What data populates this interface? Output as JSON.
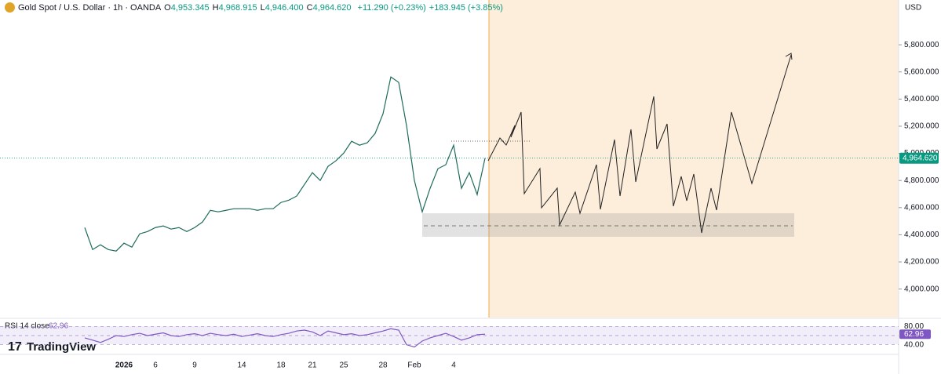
{
  "header": {
    "title": "Gold Spot / U.S. Dollar · 1h · OANDA",
    "ohlc": [
      {
        "key": "O",
        "value": "4,953.345"
      },
      {
        "key": "H",
        "value": "4,968.915"
      },
      {
        "key": "L",
        "value": "4,946.400"
      },
      {
        "key": "C",
        "value": "4,964.620"
      }
    ],
    "change": "+11.290 (+0.23%)",
    "change_extended": "+183.945 (+3.85%)",
    "currency": "USD",
    "brand": "TradingView"
  },
  "chart_data": [
    {
      "type": "line",
      "color": "#1f6b5c",
      "categories": [
        null,
        null,
        null,
        null,
        null,
        "2026",
        null,
        null,
        null,
        "6",
        null,
        null,
        null,
        null,
        "9",
        null,
        null,
        null,
        null,
        null,
        "14",
        null,
        null,
        null,
        null,
        "18",
        null,
        null,
        null,
        "21",
        null,
        null,
        null,
        "25",
        null,
        null,
        null,
        null,
        "28",
        null,
        null,
        null,
        "Feb",
        null,
        null,
        null,
        null,
        "4",
        null,
        null,
        null,
        null
      ],
      "series": [
        {
          "name": "Gold Spot",
          "color": "#1f6b5c",
          "values": [
            4453,
            4291,
            4326,
            4291,
            4280,
            4338,
            4309,
            4407,
            4424,
            4453,
            4465,
            4442,
            4453,
            4424,
            4453,
            4494,
            4580,
            4569,
            4580,
            4592,
            4592,
            4592,
            4580,
            4592,
            4592,
            4638,
            4655,
            4685,
            4771,
            4858,
            4800,
            4904,
            4945,
            5002,
            5089,
            5060,
            5078,
            5147,
            5291,
            5563,
            5523,
            5205,
            4800,
            4569,
            4742,
            4887,
            4916,
            5060,
            4742,
            4858,
            4696,
            4964.62
          ]
        }
      ],
      "ylim": [
        3790,
        6130
      ],
      "yticks": [
        {
          "value": 4000,
          "label": "4,000.000"
        },
        {
          "value": 4200,
          "label": "4,200.000"
        },
        {
          "value": 4400,
          "label": "4,400.000"
        },
        {
          "value": 4600,
          "label": "4,600.000"
        },
        {
          "value": 4800,
          "label": "4,800.000"
        },
        {
          "value": 5000,
          "label": "5,000.000"
        },
        {
          "value": 5200,
          "label": "5,200.000"
        },
        {
          "value": 5400,
          "label": "5,400.000"
        },
        {
          "value": 5600,
          "label": "5,600.000"
        },
        {
          "value": 5800,
          "label": "5,800.000"
        }
      ],
      "last_price": {
        "value": 4964.62,
        "label": "4,964.620"
      }
    },
    {
      "type": "line",
      "title": "RSI 14 close",
      "color": "#7e57c2",
      "series": [
        {
          "name": "RSI",
          "color": "#7e57c2",
          "values": [
            55,
            50,
            45,
            52,
            60,
            58,
            62,
            65,
            60,
            63,
            66,
            60,
            58,
            62,
            64,
            60,
            65,
            62,
            60,
            63,
            58,
            61,
            64,
            60,
            58,
            62,
            65,
            70,
            72,
            68,
            60,
            70,
            66,
            62,
            64,
            60,
            62,
            66,
            70,
            75,
            72,
            40,
            35,
            48,
            55,
            60,
            65,
            58,
            50,
            55,
            62,
            62.96
          ]
        }
      ],
      "ylim": [
        24,
        96
      ],
      "yticks": [
        {
          "value": 80,
          "label": "80.00"
        },
        {
          "value": 40,
          "label": "40.00"
        }
      ],
      "last_value": {
        "value": 62.96,
        "label": "62.96"
      }
    }
  ]
}
